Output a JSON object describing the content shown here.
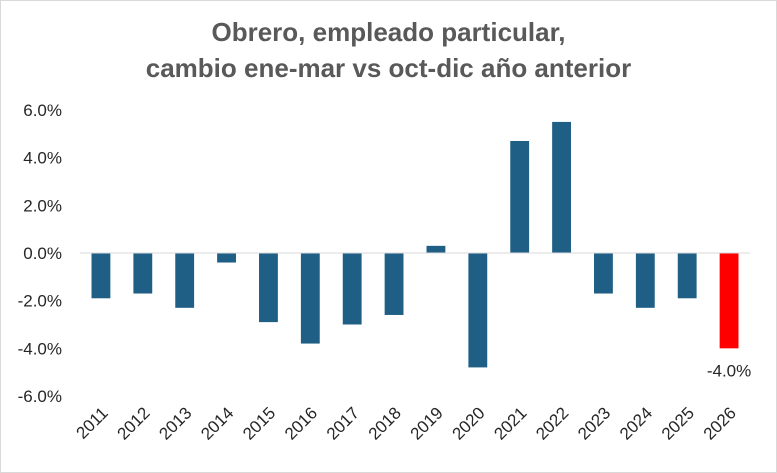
{
  "chart_data": {
    "type": "bar",
    "title_lines": [
      "Obrero, empleado particular,",
      "cambio ene-mar vs oct-dic año anterior"
    ],
    "categories": [
      "2011",
      "2012",
      "2013",
      "2014",
      "2015",
      "2016",
      "2017",
      "2018",
      "2019",
      "2020",
      "2021",
      "2022",
      "2023",
      "2024",
      "2025",
      "2026"
    ],
    "values": [
      -1.9,
      -1.7,
      -2.3,
      -0.4,
      -2.9,
      -3.8,
      -3.0,
      -2.6,
      0.3,
      -4.8,
      4.7,
      5.5,
      -1.7,
      -2.3,
      -1.9,
      -4.0
    ],
    "ylim": [
      -6.0,
      6.0
    ],
    "yticks": [
      "6.0%",
      "4.0%",
      "2.0%",
      "0.0%",
      "-2.0%",
      "-4.0%",
      "-6.0%"
    ],
    "ytick_values": [
      6,
      4,
      2,
      0,
      -2,
      -4,
      -6
    ],
    "data_labels": [
      {
        "category": "2026",
        "text": "-4.0%"
      }
    ],
    "colors": {
      "default": "#1f5f86",
      "highlight": "#ff0000"
    },
    "highlight_category": "2026",
    "grid": false,
    "xlabel": "",
    "ylabel": ""
  }
}
